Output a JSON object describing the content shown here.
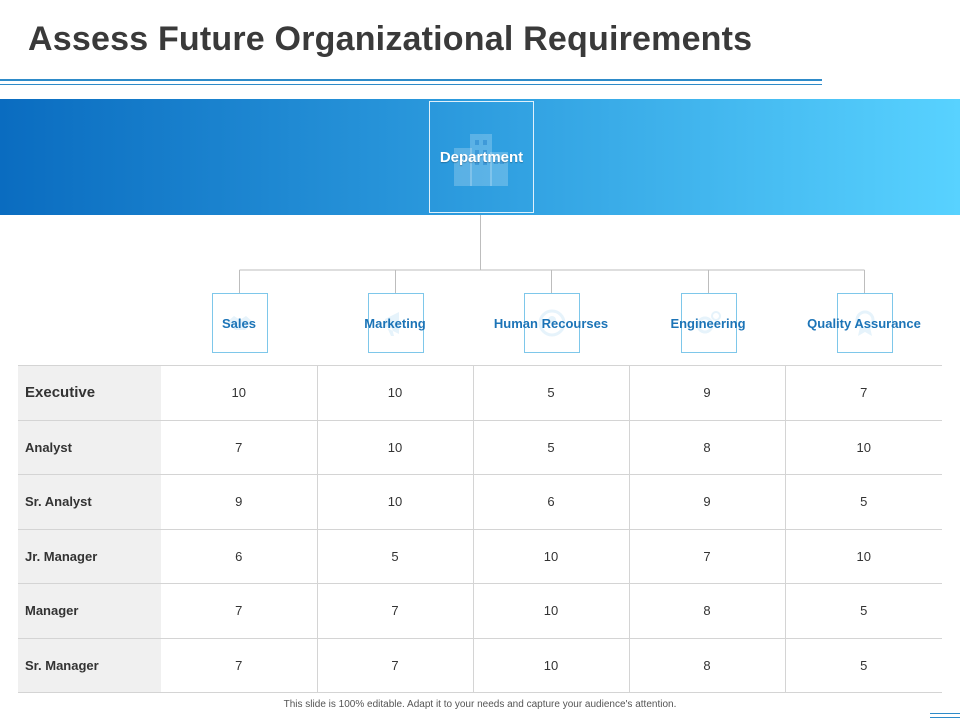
{
  "title": "Assess Future Organizational Requirements",
  "root": {
    "label": "Department",
    "icon": "building-icon"
  },
  "departments": [
    {
      "label": "Sales",
      "icon": "handshake-icon"
    },
    {
      "label": "Marketing",
      "icon": "megaphone-icon"
    },
    {
      "label": "Human Recourses",
      "icon": "people-icon"
    },
    {
      "label": "Engineering",
      "icon": "gears-icon"
    },
    {
      "label": "Quality Assurance",
      "icon": "badge-icon"
    }
  ],
  "rows": [
    {
      "label": "Executive",
      "values": [
        "10",
        "10",
        "5",
        "9",
        "7"
      ]
    },
    {
      "label": "Analyst",
      "values": [
        "7",
        "10",
        "5",
        "8",
        "10"
      ]
    },
    {
      "label": "Sr. Analyst",
      "values": [
        "9",
        "10",
        "6",
        "9",
        "5"
      ]
    },
    {
      "label": "Jr. Manager",
      "values": [
        "6",
        "5",
        "10",
        "7",
        "10"
      ]
    },
    {
      "label": "Manager",
      "values": [
        "7",
        "7",
        "10",
        "8",
        "5"
      ]
    },
    {
      "label": "Sr. Manager",
      "values": [
        "7",
        "7",
        "10",
        "8",
        "5"
      ]
    }
  ],
  "footer": "This slide is 100% editable.  Adapt it to your needs and capture your audience's attention.",
  "colors": {
    "accent": "#1c74b7",
    "banner_start": "#0a6cc0",
    "banner_end": "#58d2ff",
    "title": "#3a3a3a"
  }
}
